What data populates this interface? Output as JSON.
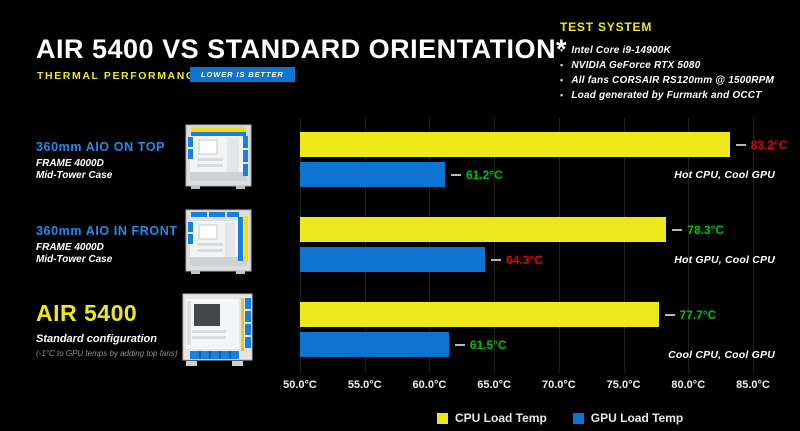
{
  "header": {
    "title": "AIR 5400 VS STANDARD ORIENTATION*",
    "subtitle": "THERMAL PERFORMANCE DATA",
    "badge": "LOWER IS BETTER"
  },
  "test_system": {
    "title": "TEST SYSTEM",
    "items": [
      "Intel Core i9-14900K",
      "NVIDIA GeForce RTX 5080",
      "All fans CORSAIR RS120mm @ 1500RPM",
      "Load generated by Furmark and OCCT"
    ]
  },
  "rows": [
    {
      "title": "360mm AIO ON TOP",
      "line1": "FRAME 4000D",
      "line2": "Mid-Tower Case"
    },
    {
      "title": "360mm AIO IN FRONT",
      "line1": "FRAME 4000D",
      "line2": "Mid-Tower Case"
    },
    {
      "title": "AIR 5400",
      "line1": "Standard configuration",
      "line2": "(-1°C to GPU temps by adding top fans)"
    }
  ],
  "chart_data": {
    "type": "bar",
    "orientation": "horizontal",
    "categories": [
      "360mm AIO ON TOP",
      "360mm AIO IN FRONT",
      "AIR 5400"
    ],
    "series": [
      {
        "name": "CPU Load Temp",
        "color": "#ece81a",
        "values": [
          83.2,
          78.3,
          77.7
        ],
        "value_labels": [
          "83.2°C",
          "78.3°C",
          "77.7°C"
        ],
        "label_status": [
          "hot",
          "cool",
          "cool"
        ]
      },
      {
        "name": "GPU Load Temp",
        "color": "#0e74d1",
        "values": [
          61.2,
          64.3,
          61.5
        ],
        "value_labels": [
          "61.2°C",
          "64.3°C",
          "61.5°C"
        ],
        "label_status": [
          "cool",
          "hot",
          "cool"
        ]
      }
    ],
    "annotations": [
      "Hot CPU, Cool GPU",
      "Hot GPU, Cool CPU",
      "Cool CPU, Cool GPU"
    ],
    "x_ticks": [
      "50.0°C",
      "55.0°C",
      "60.0°C",
      "65.0°C",
      "70.0°C",
      "75.0°C",
      "80.0°C",
      "85.0°C"
    ],
    "xlim": [
      50,
      85
    ],
    "grid": true,
    "legend_position": "bottom"
  },
  "colors": {
    "yellow": "#ece81a",
    "blue": "#0e74d1",
    "label_blue": "#1f8ee9",
    "red": "#e60000",
    "green": "#00c400",
    "white": "#ffffff",
    "gray": "#8f9296"
  }
}
